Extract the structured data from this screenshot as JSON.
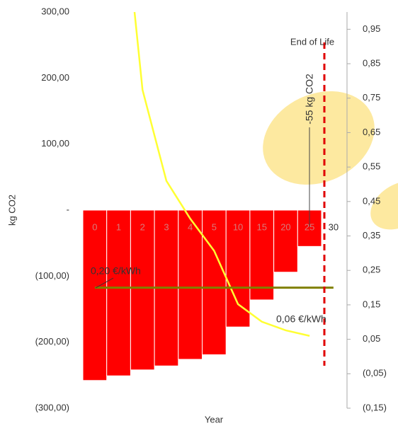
{
  "chart_data": {
    "type": "bar-line",
    "y_label": "kg CO2",
    "x_label": "Year",
    "categories": [
      "0",
      "1",
      "2",
      "3",
      "4",
      "5",
      "10",
      "15",
      "20",
      "25",
      "30"
    ],
    "series": [
      {
        "type": "bar",
        "color": "#ff0000",
        "values": [
          -258,
          -251,
          -242,
          -236,
          -226,
          -219,
          -177,
          -136,
          -94,
          -55,
          null
        ]
      },
      {
        "type": "line",
        "axis": "y2",
        "color": "#ffff33",
        "values": [
          null,
          1.45,
          0.774,
          0.51,
          0.4,
          0.307,
          0.152,
          0.101,
          0.076,
          0.06,
          null
        ]
      },
      {
        "type": "line",
        "axis": "y2",
        "color": "#808000",
        "values": [
          0.2,
          0.2,
          0.2,
          0.2,
          0.2,
          0.2,
          0.2,
          0.2,
          0.2,
          0.2,
          0.2
        ]
      }
    ],
    "ylim": [
      -300,
      300
    ],
    "yticks": [
      {
        "value": 300,
        "label": "300,00"
      },
      {
        "value": 200,
        "label": "200,00"
      },
      {
        "value": 100,
        "label": "100,00"
      },
      {
        "value": 0,
        "label": "-"
      },
      {
        "value": -100,
        "label": "(100,00)"
      },
      {
        "value": -200,
        "label": "(200,00)"
      },
      {
        "value": -300,
        "label": "(300,00)"
      }
    ],
    "y2lim": [
      -0.15,
      1.0
    ],
    "y2ticks": [
      {
        "value": 0.95,
        "label": "0,95"
      },
      {
        "value": 0.85,
        "label": "0,85"
      },
      {
        "value": 0.75,
        "label": "0,75"
      },
      {
        "value": 0.65,
        "label": "0,65"
      },
      {
        "value": 0.55,
        "label": "0,55"
      },
      {
        "value": 0.45,
        "label": "0,45"
      },
      {
        "value": 0.35,
        "label": "0,35"
      },
      {
        "value": 0.25,
        "label": "0,25"
      },
      {
        "value": 0.15,
        "label": "0,15"
      },
      {
        "value": 0.05,
        "label": "0,05"
      },
      {
        "value": -0.05,
        "label": "(0,05)"
      },
      {
        "value": -0.15,
        "label": "(0,15)"
      }
    ],
    "annotations": {
      "end_of_life": "End of Life",
      "bar_note": "-55 kg CO2",
      "price_high": "0,20 €/kWh",
      "price_low": "0,06 €/kWh"
    }
  }
}
